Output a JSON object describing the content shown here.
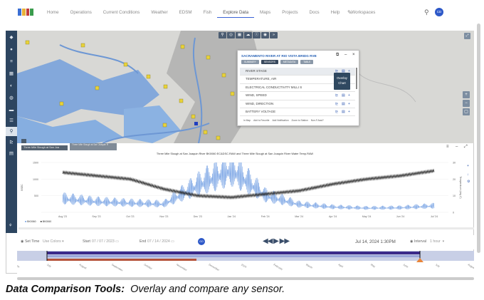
{
  "nav": {
    "items": [
      "Home",
      "Operations",
      "Current Conditions",
      "Weather",
      "EDSM",
      "Fish",
      "Explore Data",
      "Maps",
      "Projects",
      "Docs",
      "Help",
      "Workspaces"
    ],
    "active": "Explore Data",
    "avatar_text": "CD"
  },
  "popup": {
    "title": "SACRAMENTO RIVER AT RIO VISTA BRIDG RVB",
    "tabs": [
      "SUMMARY",
      "SENSORS",
      "METADATA",
      "TABLE"
    ],
    "active_tab": "SENSORS",
    "rows": [
      "RIVER STAGE",
      "TEMPERATURE, AIR",
      "ELECTRICAL CONDUCTIVITY MILLI S",
      "WIND, SPEED",
      "WIND, DIRECTION",
      "BATTERY VOLTAGE"
    ],
    "footer": [
      "In Map",
      "Add to Favorite",
      "Add Notification",
      "Zoom to Station",
      "Non-F.Asst?"
    ],
    "overlay_tip": "Overlay Chart"
  },
  "map": {
    "tooltip1": "Three Mile Slough at San Joa",
    "tooltip2": "Three Mile Slough at San Joaquin R"
  },
  "chart": {
    "title": "Three Mile Slough at San Joaquin River BK0060 EC&DSC.RAW and Three Mile Slough at San Joaquin River Water Temp.RAW",
    "legend": [
      "BK0060",
      "BK0060"
    ],
    "left_axis_label": "BSEC",
    "right_axis_label": "Temperature (deg C)"
  },
  "chart_data": {
    "type": "line",
    "x": [
      "Aug '23",
      "Sep '23",
      "Oct '23",
      "Nov '23",
      "Dec '23",
      "Jan '24",
      "Feb '24",
      "Mar '24",
      "Apr '24",
      "May '24",
      "Jun '24",
      "Jul '24"
    ],
    "ylim_left": [
      0,
      1500
    ],
    "ylim_right": [
      0,
      30
    ],
    "left_ticks": [
      "1500",
      "1000",
      "500"
    ],
    "right_ticks": [
      "30",
      "20",
      "10",
      "0"
    ],
    "series": [
      {
        "axis": "left",
        "values": [
          380,
          300,
          260,
          230,
          760,
          1210,
          470,
          220,
          150,
          120,
          130,
          180
        ]
      },
      {
        "axis": "right",
        "values": [
          24,
          22,
          20,
          14,
          10,
          9,
          11,
          13,
          17,
          20,
          22,
          25
        ]
      }
    ]
  },
  "timebar": {
    "set_time": "Set Time",
    "use_colors": "Use Colors",
    "start_label": "Start",
    "start_value": "07 / 07 / 2023",
    "end_label": "End",
    "end_value": "07 / 14 / 2024",
    "go": "GO",
    "current": "Jul 14, 2024 1:30PM",
    "interval_label": "Interval",
    "interval_value": "1 hour"
  },
  "timeline": {
    "labels": [
      "June",
      "July",
      "August",
      "September",
      "October",
      "November",
      "December",
      "2024",
      "February",
      "March",
      "April",
      "May",
      "June",
      "July",
      "August"
    ]
  },
  "caption": {
    "bold": "Data Comparison Tools:",
    "text": "Overlay and compare any sensor."
  }
}
